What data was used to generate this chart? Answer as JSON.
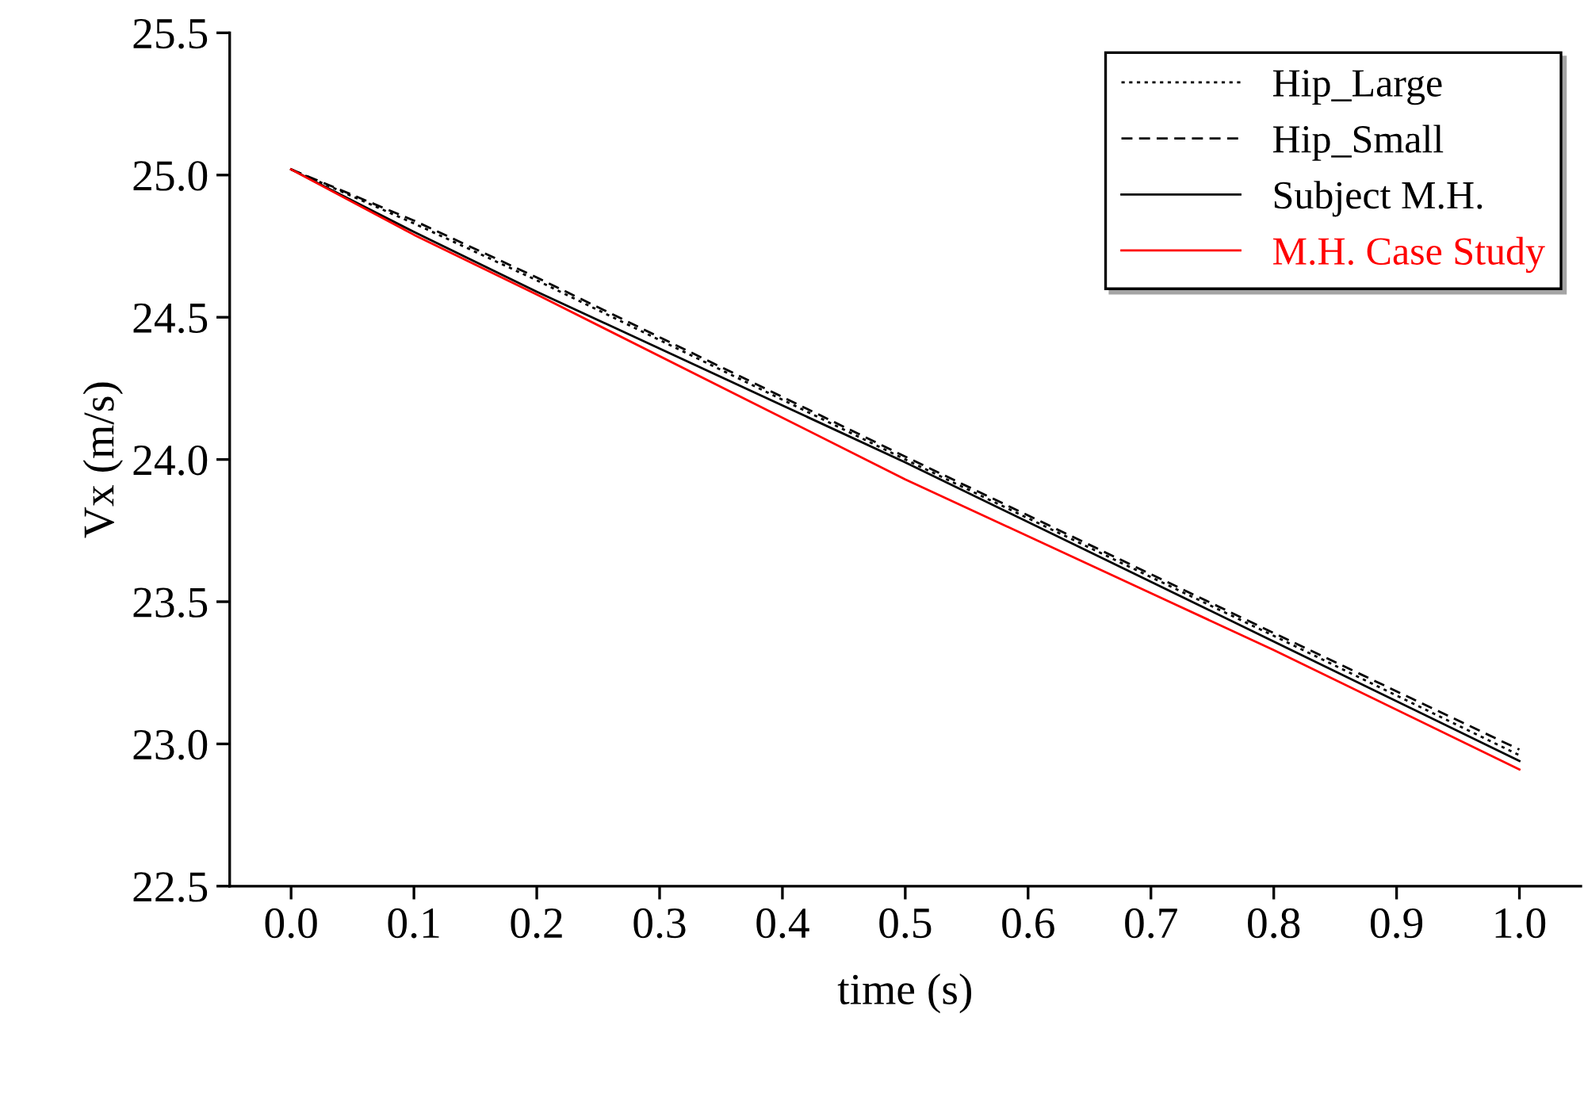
{
  "chart_data": {
    "type": "line",
    "xlabel": "time (s)",
    "ylabel": "Vx (m/s)",
    "x": [
      0.0,
      0.1,
      0.2,
      0.5,
      0.8,
      1.0
    ],
    "series": [
      {
        "name": "Hip_Large",
        "color": "#000000",
        "line_style": "dotted",
        "values": [
          25.02,
          24.83,
          24.63,
          24.0,
          23.38,
          22.96
        ]
      },
      {
        "name": "Hip_Small",
        "color": "#000000",
        "line_style": "dashed",
        "values": [
          25.02,
          24.84,
          24.64,
          24.01,
          23.39,
          22.98
        ]
      },
      {
        "name": "Subject M.H.",
        "color": "#000000",
        "line_style": "solid",
        "values": [
          25.02,
          24.8,
          24.59,
          23.99,
          23.36,
          22.94
        ]
      },
      {
        "name": "M.H. Case Study",
        "color": "#ff0000",
        "line_style": "solid",
        "values": [
          25.02,
          24.79,
          24.58,
          23.93,
          23.33,
          22.91
        ]
      }
    ],
    "xlim": [
      -0.05,
      1.05
    ],
    "xticks": [
      {
        "value": 0,
        "label": "0.0"
      },
      0.1,
      0.2,
      0.3,
      0.4,
      0.5,
      0.6,
      0.7,
      0.8,
      0.9,
      {
        "value": 1,
        "label": "1.0"
      }
    ],
    "ylim": [
      22.5,
      25.5
    ],
    "yticks": [
      22.5,
      {
        "value": 23,
        "label": "23.0"
      },
      23.5,
      {
        "value": 24,
        "label": "24.0"
      },
      24.5,
      {
        "value": 25,
        "label": "25.0"
      },
      25.5
    ],
    "grid": false,
    "legend": "top right"
  }
}
